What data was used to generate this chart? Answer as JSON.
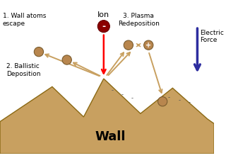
{
  "bg_color": "#ffffff",
  "wall_color": "#c8a060",
  "wall_edge_color": "#8B6914",
  "arrow_color": "#c8a060",
  "ion_color": "#8B0000",
  "atom_color": "#b8864e",
  "atom_edge_color": "#7a5c2e",
  "electric_arrow_color": "#2d2d9f",
  "title": "Wall",
  "label1": "1. Wall atoms\nescape",
  "label2": "2. Ballistic\nDeposition",
  "label3": "3. Plasma\nRedeposition",
  "label4": "Electric\nForce",
  "label_ion": "Ion",
  "minus_sign": "-",
  "plus_sign": "+"
}
